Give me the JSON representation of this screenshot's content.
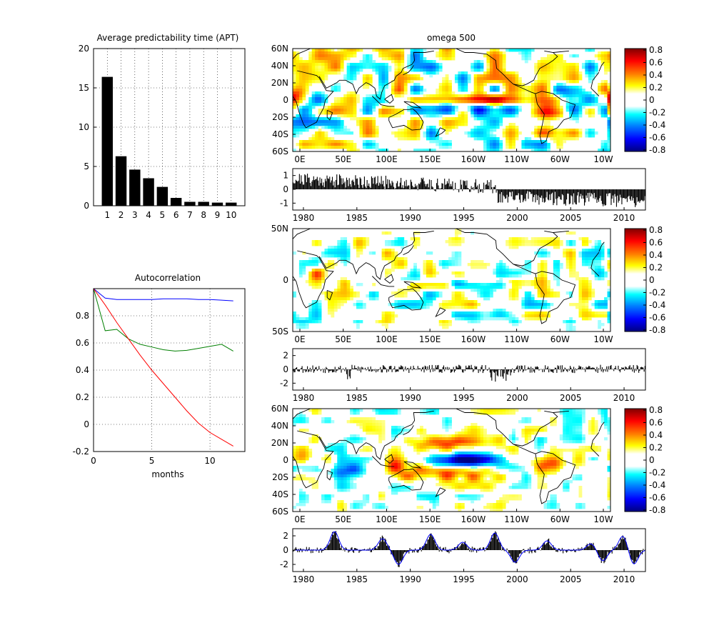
{
  "colors": {
    "bars": "#000000",
    "blue": "#0000ff",
    "green": "#007f00",
    "red": "#ff0000",
    "map_line": "#000000"
  },
  "chart_data": [
    {
      "type": "bar",
      "title": "Average predictability time (APT)",
      "categories": [
        "1",
        "2",
        "3",
        "4",
        "5",
        "6",
        "7",
        "8",
        "9",
        "10"
      ],
      "values": [
        16.4,
        6.3,
        4.6,
        3.5,
        2.4,
        1.0,
        0.5,
        0.5,
        0.4,
        0.4
      ],
      "ylim": [
        0,
        20
      ],
      "yticks": [
        "0",
        "5",
        "10",
        "15",
        "20"
      ],
      "grid": true
    },
    {
      "type": "line",
      "title": "Autocorrelation",
      "xlabel": "months",
      "xlim": [
        0,
        13
      ],
      "ylim": [
        -0.2,
        1.0
      ],
      "xticks": [
        "0",
        "5",
        "10"
      ],
      "yticks": [
        "-0.2",
        "0",
        "0.2",
        "0.4",
        "0.6",
        "0.8"
      ],
      "grid": true,
      "series": [
        {
          "color": "blue",
          "x": [
            0,
            1,
            2,
            3,
            4,
            5,
            6,
            7,
            8,
            9,
            10,
            11,
            12
          ],
          "y": [
            1.0,
            0.93,
            0.92,
            0.92,
            0.92,
            0.92,
            0.925,
            0.925,
            0.925,
            0.92,
            0.92,
            0.915,
            0.91
          ]
        },
        {
          "color": "green",
          "x": [
            0,
            1,
            2,
            3,
            4,
            5,
            6,
            7,
            8,
            9,
            10,
            11,
            12
          ],
          "y": [
            1.0,
            0.69,
            0.7,
            0.63,
            0.59,
            0.57,
            0.55,
            0.54,
            0.545,
            0.56,
            0.575,
            0.59,
            0.54
          ]
        },
        {
          "color": "red",
          "x": [
            0,
            1,
            2,
            3,
            4,
            5,
            6,
            7,
            8,
            9,
            10,
            11,
            12
          ],
          "y": [
            1.0,
            0.88,
            0.75,
            0.63,
            0.51,
            0.4,
            0.3,
            0.2,
            0.1,
            0.01,
            -0.06,
            -0.11,
            -0.16
          ]
        }
      ]
    },
    {
      "type": "heatmap",
      "title": "omega 500",
      "xticks": [
        "0E",
        "50E",
        "100E",
        "150E",
        "160W",
        "110W",
        "60W",
        "10W"
      ],
      "yticks": [
        "60N",
        "40N",
        "20N",
        "0",
        "20S",
        "40S",
        "60S"
      ],
      "pattern": "trend",
      "colorbar_ticks": [
        "0.8",
        "0.6",
        "0.4",
        "0.2",
        "0",
        "-0.2",
        "-0.4",
        "-0.6",
        "-0.8"
      ]
    },
    {
      "type": "bar",
      "x_range": [
        1979,
        2012
      ],
      "ylim": [
        -1.5,
        1.5
      ],
      "yticks": [
        "1",
        "0",
        "-1"
      ],
      "xticks": [
        "1980",
        "1985",
        "1990",
        "1995",
        "2000",
        "2005",
        "2010"
      ],
      "pattern": "step"
    },
    {
      "type": "heatmap",
      "xticks": [
        "0E",
        "50E",
        "100E",
        "150E",
        "160W",
        "110W",
        "60W",
        "10W"
      ],
      "yticks": [
        "50N",
        "0",
        "50S"
      ],
      "pattern": "midequator",
      "colorbar_ticks": [
        "0.8",
        "0.6",
        "0.4",
        "0.2",
        "0",
        "-0.2",
        "-0.4",
        "-0.6",
        "-0.8"
      ]
    },
    {
      "type": "bar",
      "x_range": [
        1979,
        2012
      ],
      "ylim": [
        -3,
        3
      ],
      "yticks": [
        "2",
        "0",
        "-2"
      ],
      "xticks": [
        "1980",
        "1985",
        "1990",
        "1995",
        "2000",
        "2005",
        "2010"
      ],
      "pattern": "noise"
    },
    {
      "type": "heatmap",
      "xticks": [
        "0E",
        "50E",
        "100E",
        "150E",
        "160W",
        "110W",
        "60W",
        "10W"
      ],
      "yticks": [
        "60N",
        "40N",
        "20N",
        "0",
        "20S",
        "40S",
        "60S"
      ],
      "pattern": "enso",
      "colorbar_ticks": [
        "0.8",
        "0.6",
        "0.4",
        "0.2",
        "0",
        "-0.2",
        "-0.4",
        "-0.6",
        "-0.8"
      ]
    },
    {
      "type": "bar",
      "x_range": [
        1979,
        2012
      ],
      "ylim": [
        -3,
        3
      ],
      "yticks": [
        "2",
        "0",
        "-2"
      ],
      "xticks": [
        "1980",
        "1985",
        "1990",
        "1995",
        "2000",
        "2005",
        "2010"
      ],
      "pattern": "enso",
      "events": [
        {
          "t": 1982.9,
          "amp": 2.6
        },
        {
          "t": 1987.4,
          "amp": 1.6
        },
        {
          "t": 1988.9,
          "amp": -2.0
        },
        {
          "t": 1991.9,
          "amp": 2.2
        },
        {
          "t": 1994.9,
          "amp": 1.1
        },
        {
          "t": 1997.9,
          "amp": 2.4
        },
        {
          "t": 1999.8,
          "amp": -1.7
        },
        {
          "t": 2002.8,
          "amp": 1.3
        },
        {
          "t": 2006.9,
          "amp": 0.9
        },
        {
          "t": 2008.0,
          "amp": -1.5
        },
        {
          "t": 2009.9,
          "amp": 2.0
        },
        {
          "t": 2010.9,
          "amp": -2.0
        }
      ]
    }
  ]
}
